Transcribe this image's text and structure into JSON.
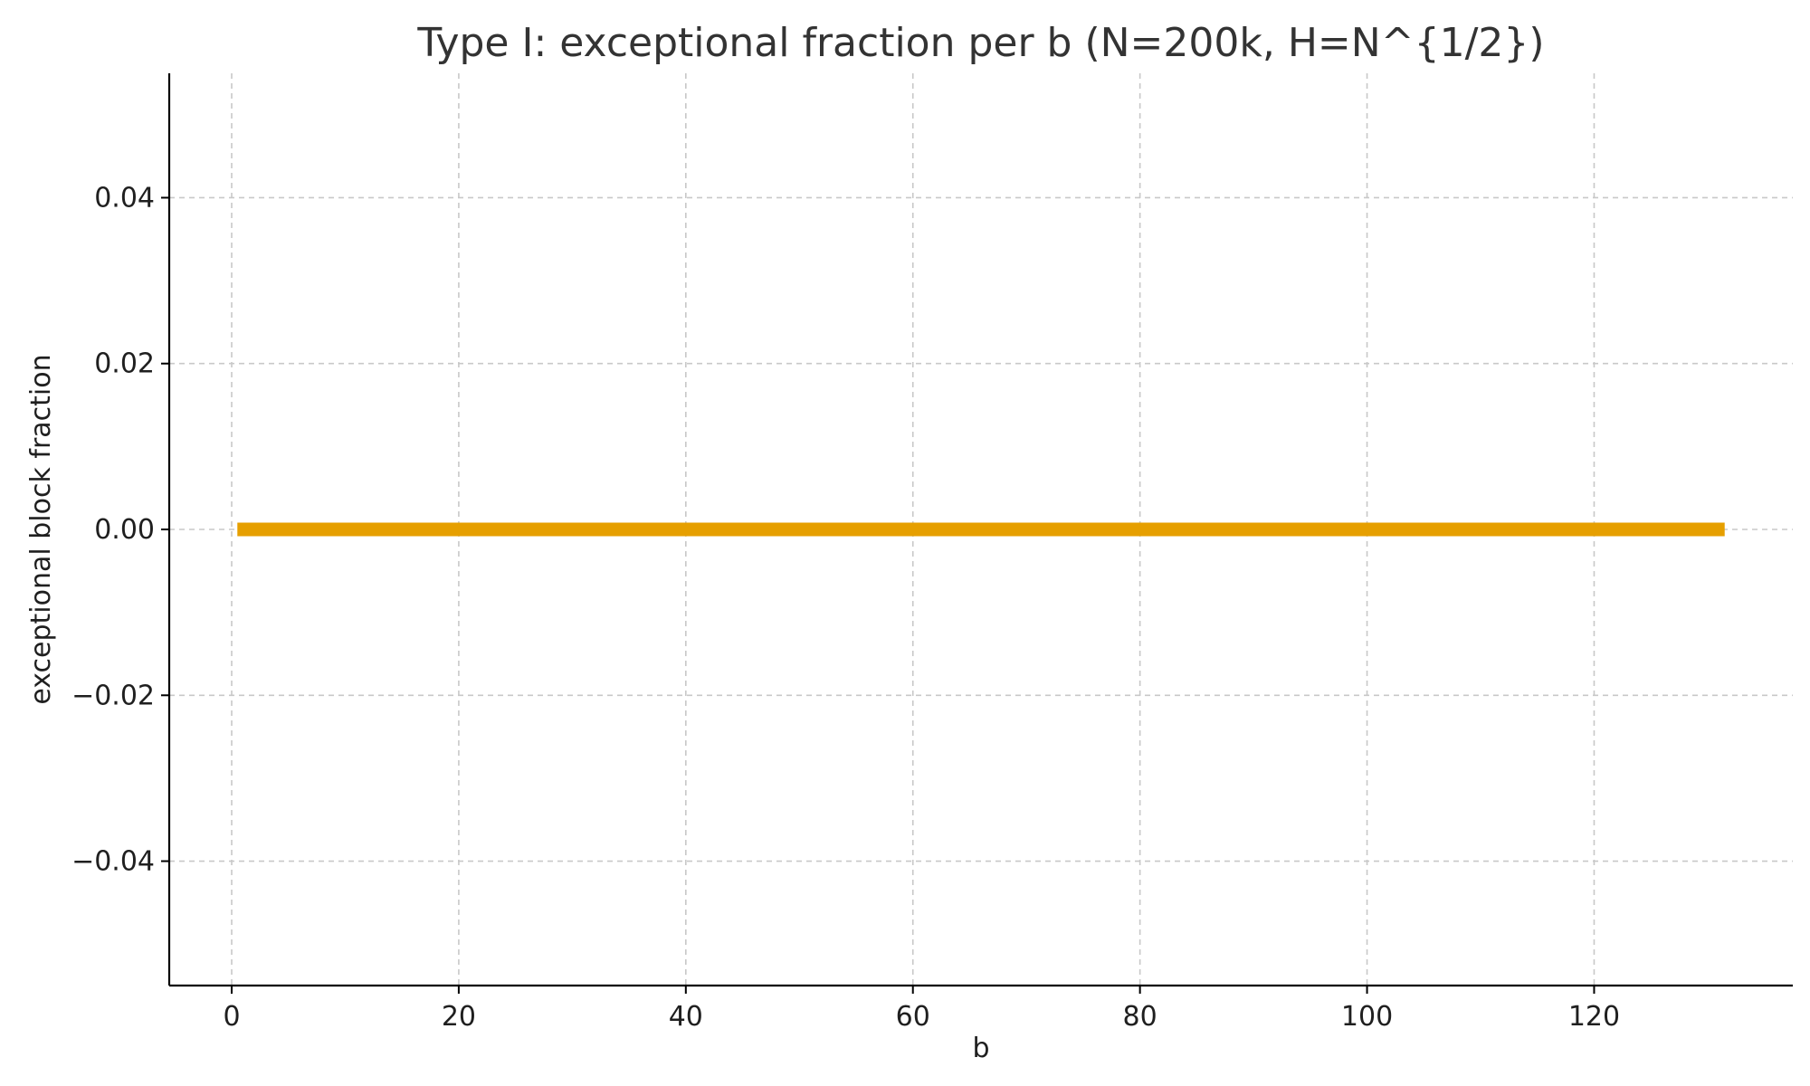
{
  "chart_data": {
    "type": "line",
    "title": "Type I: exceptional fraction per b (N=200k, H=N^{1/2})",
    "xlabel": "b",
    "ylabel": "exceptional block fraction",
    "xlim": [
      -5.5,
      137.5
    ],
    "ylim": [
      -0.055,
      0.055
    ],
    "xticks": [
      0,
      20,
      40,
      60,
      80,
      100,
      120
    ],
    "xtick_labels": [
      "0",
      "20",
      "40",
      "60",
      "80",
      "100",
      "120"
    ],
    "yticks": [
      0.04,
      0.02,
      0.0,
      -0.02,
      -0.04
    ],
    "ytick_labels": [
      "0.04",
      "0.02",
      "0.00",
      "−0.02",
      "−0.04"
    ],
    "grid": true,
    "series": [
      {
        "color": "#E69F00",
        "x": [
          0.5,
          131.5
        ],
        "y": [
          0.0,
          0.0
        ]
      }
    ]
  }
}
